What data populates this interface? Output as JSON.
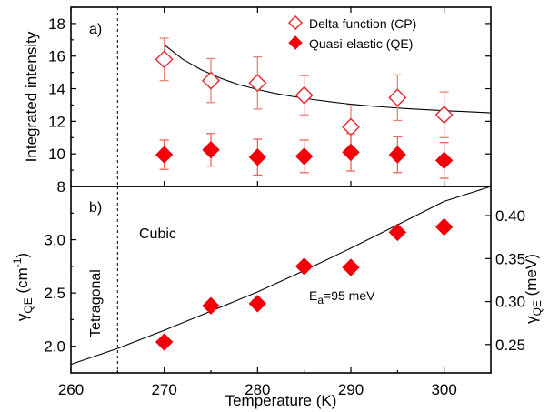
{
  "chart_data": [
    {
      "panel_label": "a)",
      "type": "scatter",
      "xlabel": "Temperature (K)",
      "ylabel": "Integrated intensity",
      "xlim": [
        260,
        305
      ],
      "ylim": [
        8,
        19
      ],
      "yticks": [
        8,
        10,
        12,
        14,
        16,
        18
      ],
      "xticks": [
        260,
        270,
        280,
        290,
        300
      ],
      "legend_position": "top-right",
      "vline_x": 265,
      "series": [
        {
          "name": "Delta function (CP)",
          "marker": "open-diamond",
          "color": "#e8232a",
          "x": [
            270,
            275,
            280,
            285,
            290,
            295,
            300
          ],
          "y": [
            15.8,
            14.5,
            14.35,
            13.6,
            11.65,
            13.45,
            12.4
          ],
          "yerr": [
            1.3,
            1.35,
            1.6,
            1.2,
            1.3,
            1.4,
            1.4
          ]
        },
        {
          "name": "Quasi-elastic (QE)",
          "marker": "filled-diamond",
          "color": "#f4000a",
          "x": [
            270,
            275,
            280,
            285,
            290,
            295,
            300
          ],
          "y": [
            9.95,
            10.25,
            9.8,
            9.85,
            10.1,
            9.95,
            9.6
          ],
          "yerr": [
            0.9,
            1.0,
            1.1,
            1.0,
            1.15,
            1.1,
            1.1
          ]
        }
      ],
      "fit_curve": {
        "x": [
          270,
          272,
          274,
          276,
          278,
          280,
          282,
          284,
          286,
          288,
          290,
          292,
          294,
          296,
          298,
          300,
          302,
          305
        ],
        "y": [
          16.7,
          15.8,
          15.15,
          14.65,
          14.25,
          13.95,
          13.7,
          13.5,
          13.33,
          13.18,
          13.05,
          12.95,
          12.86,
          12.78,
          12.71,
          12.65,
          12.6,
          12.52
        ]
      }
    },
    {
      "panel_label": "b)",
      "type": "scatter",
      "xlabel": "Temperature (K)",
      "ylabel": "γQE (cm-1)",
      "ylabel_right": "γQE (meV)",
      "xlim": [
        260,
        305
      ],
      "ylim": [
        1.75,
        3.5
      ],
      "yticks": [
        2.0,
        2.5,
        3.0
      ],
      "yticks_right": [
        0.25,
        0.3,
        0.35,
        0.4
      ],
      "xticks": [
        260,
        270,
        280,
        290,
        300
      ],
      "vline_x": 265,
      "annotations": {
        "phase_left": "Tetragonal",
        "phase_right": "Cubic",
        "activation_energy_prefix": "E",
        "activation_energy_sub": "a",
        "activation_energy_value": "=95 meV"
      },
      "series": [
        {
          "name": "",
          "marker": "filled-diamond",
          "color": "#f4000a",
          "x": [
            270,
            275,
            280,
            285,
            290,
            295,
            300
          ],
          "y": [
            2.04,
            2.38,
            2.4,
            2.75,
            2.74,
            3.07,
            3.12
          ]
        }
      ],
      "fit_curve": {
        "x": [
          260,
          265,
          270,
          275,
          280,
          285,
          290,
          295,
          300,
          305
        ],
        "y": [
          1.83,
          1.98,
          2.15,
          2.33,
          2.51,
          2.71,
          2.92,
          3.14,
          3.36,
          3.58
        ]
      }
    }
  ]
}
